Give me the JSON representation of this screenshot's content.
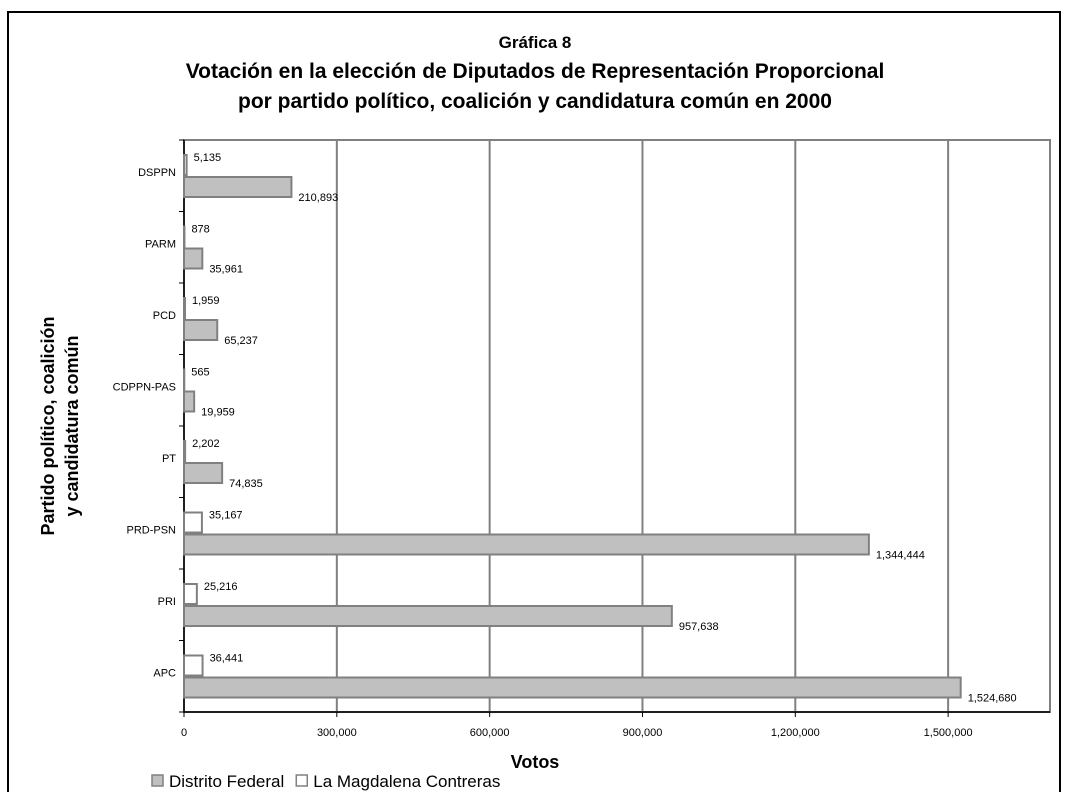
{
  "chart_data": {
    "type": "hbar",
    "title": [
      "Gráfica 8",
      "Votación en la elección de Diputados de Representación Proporcional",
      "por partido político, coalición y candidatura común en 2000"
    ],
    "xlabel": "Votos",
    "ylabel": [
      "Partido político, coalición",
      "y candidatura común"
    ],
    "categories": [
      "DSPPN",
      "PARM",
      "PCD",
      "CDPPN-PAS",
      "PT",
      "PRD-PSN",
      "PRI",
      "APC"
    ],
    "series": [
      {
        "name": "Distrito Federal",
        "color": "#c0c0c0",
        "values": [
          210893,
          35961,
          65237,
          19959,
          74835,
          1344444,
          957638,
          1524680
        ],
        "value_labels": [
          "210,893",
          "35,961",
          "65,237",
          "19,959",
          "74,835",
          "1,344,444",
          "957,638",
          "1,524,680"
        ]
      },
      {
        "name": "La Magdalena Contreras",
        "color": "#ffffff",
        "values": [
          5135,
          878,
          1959,
          565,
          2202,
          35167,
          25216,
          36441
        ],
        "value_labels": [
          "5,135",
          "878",
          "1,959",
          "565",
          "2,202",
          "35,167",
          "25,216",
          "36,441"
        ]
      }
    ],
    "xlim": [
      0,
      1700000
    ],
    "xticks": [
      0,
      {
        "value": 300000,
        "label": "300,000"
      },
      {
        "value": 600000,
        "label": "600,000"
      },
      {
        "value": 900000,
        "label": "900,000"
      },
      {
        "value": 1200000,
        "label": "1,200,000"
      },
      {
        "value": 1500000,
        "label": "1,500,000"
      }
    ],
    "grid": true,
    "legend": "bottom-left"
  }
}
